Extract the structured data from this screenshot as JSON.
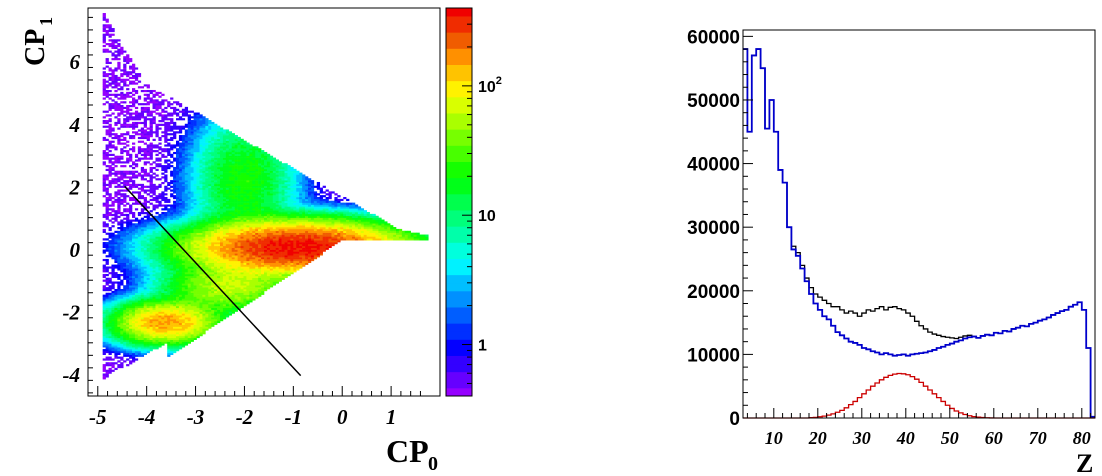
{
  "chart_data": [
    {
      "type": "heatmap",
      "xlabel": "CP",
      "xlabel_sub": "0",
      "ylabel": "CP",
      "ylabel_sub": "1",
      "xlim": [
        -5.2,
        2.0
      ],
      "ylim": [
        -4.7,
        7.7
      ],
      "x_ticks": [
        -5,
        -4,
        -3,
        -2,
        -1,
        0,
        1
      ],
      "y_ticks": [
        -4,
        -2,
        0,
        2,
        4,
        6
      ],
      "colorbar": {
        "scale": "log",
        "range": [
          0.4,
          400
        ],
        "ticks": [
          {
            "value": 1,
            "label": "1",
            "exp": ""
          },
          {
            "value": 10,
            "label": "10",
            "exp": ""
          },
          {
            "value": 100,
            "label": "10",
            "exp": "2"
          }
        ]
      },
      "cut_line": {
        "x": [
          -4.45,
          -0.85
        ],
        "y": [
          2.0,
          -4.05
        ]
      },
      "density_lobes": [
        {
          "x": -0.9,
          "y": 0.05,
          "sx": 1.1,
          "sy": 0.42,
          "peak": 380
        },
        {
          "x": -3.6,
          "y": -2.35,
          "sx": 0.55,
          "sy": 0.35,
          "peak": 150
        },
        {
          "x": -2.3,
          "y": -1.2,
          "sx": 0.7,
          "sy": 0.45,
          "peak": 60
        },
        {
          "x": -2.0,
          "y": 2.2,
          "sx": 0.55,
          "sy": 1.1,
          "peak": 22
        }
      ]
    },
    {
      "type": "line",
      "xlabel": "Z",
      "ylabel": "",
      "xlim": [
        3,
        83
      ],
      "ylim": [
        0,
        61000
      ],
      "x_ticks": [
        10,
        20,
        30,
        40,
        50,
        60,
        70,
        80
      ],
      "y_ticks": [
        0,
        10000,
        20000,
        30000,
        40000,
        50000,
        60000
      ],
      "step": true,
      "series": [
        {
          "color": "#000000",
          "x": [
            3,
            4,
            5,
            6,
            7,
            8,
            9,
            10,
            11,
            12,
            13,
            14,
            15,
            16,
            17,
            18,
            19,
            20,
            21,
            22,
            23,
            24,
            25,
            26,
            27,
            28,
            29,
            30,
            31,
            32,
            33,
            34,
            35,
            36,
            37,
            38,
            39,
            40,
            41,
            42,
            43,
            44,
            45,
            46,
            47,
            48,
            49,
            50,
            51,
            52,
            53,
            54,
            55,
            56,
            57,
            58,
            59,
            60,
            61,
            62,
            63,
            64,
            65,
            66,
            67,
            68,
            69,
            70,
            71,
            72,
            73,
            74,
            75,
            76,
            77,
            78,
            79,
            80,
            81,
            82
          ],
          "values": [
            58000,
            45000,
            57000,
            58000,
            55000,
            45500,
            50000,
            45000,
            39000,
            37000,
            30000,
            27000,
            26000,
            24000,
            22000,
            20500,
            19500,
            19000,
            18500,
            18000,
            17500,
            17500,
            17000,
            16500,
            16800,
            16500,
            16000,
            16500,
            17000,
            16800,
            17200,
            17500,
            17000,
            17400,
            17500,
            17200,
            17000,
            16500,
            16000,
            15200,
            14500,
            14000,
            13500,
            13200,
            13000,
            12800,
            12700,
            12600,
            12500,
            12700,
            12900,
            13000,
            12800,
            12600,
            12900,
            13100,
            13000,
            13400,
            13300,
            13700,
            13600,
            14000,
            14200,
            14500,
            14400,
            14800,
            15000,
            15300,
            15500,
            15800,
            16200,
            16500,
            16800,
            17000,
            17500,
            17800,
            18200,
            17000,
            11000,
            200
          ]
        },
        {
          "color": "#0000cc",
          "x": [
            3,
            4,
            5,
            6,
            7,
            8,
            9,
            10,
            11,
            12,
            13,
            14,
            15,
            16,
            17,
            18,
            19,
            20,
            21,
            22,
            23,
            24,
            25,
            26,
            27,
            28,
            29,
            30,
            31,
            32,
            33,
            34,
            35,
            36,
            37,
            38,
            39,
            40,
            41,
            42,
            43,
            44,
            45,
            46,
            47,
            48,
            49,
            50,
            51,
            52,
            53,
            54,
            55,
            56,
            57,
            58,
            59,
            60,
            61,
            62,
            63,
            64,
            65,
            66,
            67,
            68,
            69,
            70,
            71,
            72,
            73,
            74,
            75,
            76,
            77,
            78,
            79,
            80,
            81,
            82
          ],
          "values": [
            58000,
            45000,
            57000,
            58000,
            55000,
            45500,
            50000,
            45000,
            39000,
            37000,
            30000,
            26500,
            25500,
            23500,
            21500,
            19500,
            18000,
            17000,
            16000,
            15500,
            14500,
            13500,
            13000,
            12500,
            12000,
            11800,
            11500,
            11000,
            10800,
            10500,
            10300,
            10000,
            10200,
            10000,
            9800,
            9900,
            10000,
            9800,
            10000,
            10100,
            10200,
            10300,
            10500,
            10700,
            11000,
            11200,
            11500,
            11700,
            12000,
            12200,
            12500,
            12700,
            12800,
            12600,
            12900,
            13100,
            13000,
            13400,
            13300,
            13700,
            13600,
            14000,
            14200,
            14500,
            14400,
            14800,
            15000,
            15300,
            15500,
            15800,
            16200,
            16500,
            16800,
            17000,
            17500,
            17800,
            18200,
            17000,
            11000,
            200
          ]
        },
        {
          "color": "#cc0000",
          "x": [
            3,
            4,
            5,
            6,
            7,
            8,
            9,
            10,
            11,
            12,
            13,
            14,
            15,
            16,
            17,
            18,
            19,
            20,
            21,
            22,
            23,
            24,
            25,
            26,
            27,
            28,
            29,
            30,
            31,
            32,
            33,
            34,
            35,
            36,
            37,
            38,
            39,
            40,
            41,
            42,
            43,
            44,
            45,
            46,
            47,
            48,
            49,
            50,
            51,
            52,
            53,
            54,
            55,
            56,
            57,
            58,
            59,
            60,
            61,
            62,
            63,
            64,
            65,
            66,
            67,
            68,
            69,
            70,
            71,
            72,
            73,
            74,
            75,
            76,
            77,
            78,
            79,
            80,
            81,
            82
          ],
          "values": [
            0,
            0,
            0,
            0,
            0,
            0,
            0,
            0,
            0,
            0,
            0,
            0,
            0,
            0,
            0,
            50,
            100,
            200,
            300,
            450,
            650,
            900,
            1200,
            1600,
            2100,
            2600,
            3200,
            3800,
            4400,
            5000,
            5500,
            6000,
            6400,
            6700,
            6900,
            7000,
            6950,
            6800,
            6500,
            6100,
            5600,
            5000,
            4400,
            3800,
            3200,
            2600,
            2000,
            1500,
            1100,
            800,
            550,
            350,
            220,
            130,
            70,
            30,
            10,
            0,
            0,
            0,
            0,
            0,
            0,
            0,
            0,
            0,
            0,
            0,
            0,
            0,
            0,
            0,
            0,
            0,
            0,
            0,
            0,
            0,
            0,
            0
          ]
        }
      ]
    }
  ]
}
